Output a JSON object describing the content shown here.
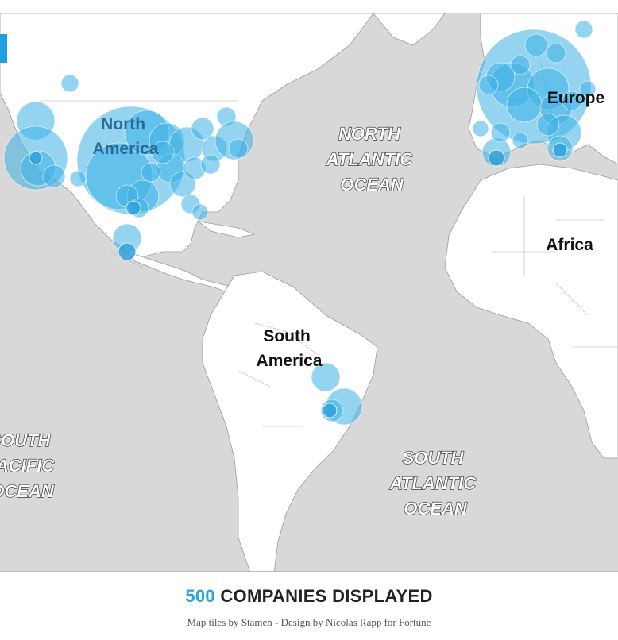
{
  "map": {
    "continent_labels": {
      "north_america_line1": "North",
      "north_america_line2": "America",
      "south_america_line1": "South",
      "south_america_line2": "America",
      "europe": "Europe",
      "africa": "Africa"
    },
    "ocean_labels": {
      "north_atlantic": [
        "NORTH",
        "ATLANTIC",
        "OCEAN"
      ],
      "south_atlantic": [
        "SOUTH",
        "ATLANTIC",
        "OCEAN"
      ],
      "south_pacific": [
        "SOUTH",
        "PACIFIC",
        "OCEAN"
      ]
    },
    "colors": {
      "water": "#d8d8d8",
      "land": "#ffffff",
      "bubble": "#3cb1e6",
      "accent": "#2aa5dc"
    },
    "marker_shape": "circle"
  },
  "footer": {
    "count": "500",
    "count_suffix": " COMPANIES DISPLAYED",
    "credit": "Map tiles by Stamen - Design by Nicolas Rapp for Fortune"
  }
}
